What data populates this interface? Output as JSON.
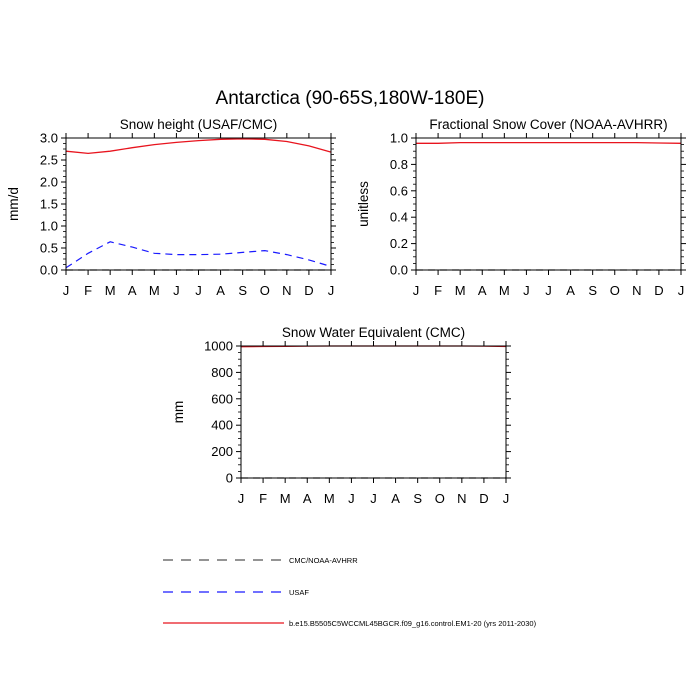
{
  "main_title": "Antarctica (90-65S,180W-180E)",
  "colors": {
    "model": "#e8141e",
    "usaf": "#1a1aff",
    "cmc": "#555555"
  },
  "months": [
    "J",
    "F",
    "M",
    "A",
    "M",
    "J",
    "J",
    "A",
    "S",
    "O",
    "N",
    "D",
    "J"
  ],
  "chart_data": [
    {
      "type": "line",
      "title": "Snow height (USAF/CMC)",
      "ylabel": "mm/d",
      "xlabel": "",
      "ylim": [
        0,
        3
      ],
      "yticks": [
        "0.0",
        "0.5",
        "1.0",
        "1.5",
        "2.0",
        "2.5",
        "3.0"
      ],
      "ytick_values": [
        0,
        0.5,
        1,
        1.5,
        2,
        2.5,
        3
      ],
      "series": [
        {
          "name": "b.e15.B5505C5WCCML45BGCR.f09_g16.control.EM1-20 (yrs 2011-2030)",
          "style": "model",
          "values": [
            2.7,
            2.65,
            2.7,
            2.78,
            2.85,
            2.9,
            2.94,
            2.97,
            2.98,
            2.97,
            2.92,
            2.82,
            2.68
          ]
        },
        {
          "name": "USAF",
          "style": "usaf",
          "values": [
            0.05,
            0.38,
            0.64,
            0.52,
            0.38,
            0.35,
            0.35,
            0.36,
            0.4,
            0.44,
            0.35,
            0.23,
            0.08
          ]
        },
        {
          "name": "CMC/NOAA-AVHRR",
          "style": "cmc",
          "values": [
            0,
            0,
            0,
            0,
            0,
            0,
            0,
            0,
            0,
            0,
            0,
            0,
            0
          ]
        }
      ]
    },
    {
      "type": "line",
      "title": "Fractional Snow Cover (NOAA-AVHRR)",
      "ylabel": "unitless",
      "xlabel": "",
      "ylim": [
        0,
        1
      ],
      "yticks": [
        "0.0",
        "0.2",
        "0.4",
        "0.6",
        "0.8",
        "1.0"
      ],
      "ytick_values": [
        0,
        0.2,
        0.4,
        0.6,
        0.8,
        1.0
      ],
      "series": [
        {
          "name": "b.e15.B5505C5WCCML45BGCR.f09_g16.control.EM1-20 (yrs 2011-2030)",
          "style": "model",
          "values": [
            0.96,
            0.96,
            0.965,
            0.965,
            0.965,
            0.965,
            0.965,
            0.965,
            0.965,
            0.965,
            0.965,
            0.962,
            0.96
          ]
        },
        {
          "name": "CMC/NOAA-AVHRR",
          "style": "cmc",
          "values": [
            0,
            0,
            0,
            0,
            0,
            0,
            0,
            0,
            0,
            0,
            0,
            0,
            0
          ]
        }
      ]
    },
    {
      "type": "line",
      "title": "Snow Water Equivalent (CMC)",
      "ylabel": "mm",
      "xlabel": "",
      "ylim": [
        0,
        1000
      ],
      "yticks": [
        "0",
        "200",
        "400",
        "600",
        "800",
        "1000"
      ],
      "ytick_values": [
        0,
        200,
        400,
        600,
        800,
        1000
      ],
      "series": [
        {
          "name": "b.e15.B5505C5WCCML45BGCR.f09_g16.control.EM1-20 (yrs 2011-2030)",
          "style": "model",
          "values": [
            995,
            996,
            998,
            999,
            1000,
            1000,
            1000,
            1000,
            1000,
            1000,
            1000,
            999,
            996
          ]
        },
        {
          "name": "CMC/NOAA-AVHRR",
          "style": "cmc",
          "values": [
            0,
            0,
            0,
            0,
            0,
            0,
            0,
            0,
            0,
            0,
            0,
            0,
            0
          ]
        }
      ]
    }
  ],
  "legend": [
    {
      "label": "CMC/NOAA-AVHRR",
      "style": "cmc"
    },
    {
      "label": "USAF",
      "style": "usaf"
    },
    {
      "label": "b.e15.B5505C5WCCML45BGCR.f09_g16.control.EM1-20 (yrs 2011-2030)",
      "style": "model"
    }
  ]
}
